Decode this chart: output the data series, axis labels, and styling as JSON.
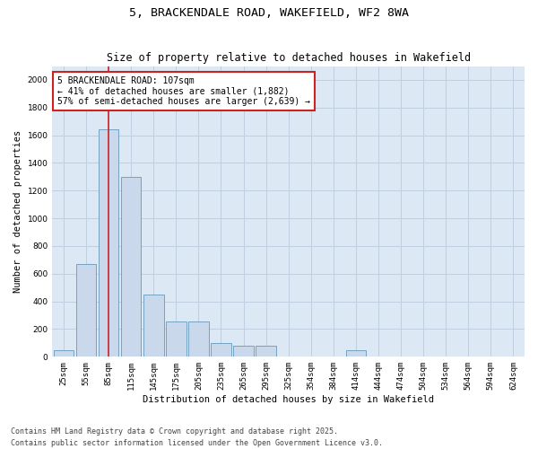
{
  "title": "5, BRACKENDALE ROAD, WAKEFIELD, WF2 8WA",
  "subtitle": "Size of property relative to detached houses in Wakefield",
  "xlabel": "Distribution of detached houses by size in Wakefield",
  "ylabel": "Number of detached properties",
  "categories": [
    "25sqm",
    "55sqm",
    "85sqm",
    "115sqm",
    "145sqm",
    "175sqm",
    "205sqm",
    "235sqm",
    "265sqm",
    "295sqm",
    "325sqm",
    "354sqm",
    "384sqm",
    "414sqm",
    "444sqm",
    "474sqm",
    "504sqm",
    "534sqm",
    "564sqm",
    "594sqm",
    "624sqm"
  ],
  "values": [
    50,
    670,
    1640,
    1300,
    450,
    255,
    255,
    100,
    80,
    80,
    0,
    0,
    0,
    50,
    0,
    0,
    0,
    0,
    0,
    0,
    0
  ],
  "bar_color": "#c9d9eb",
  "bar_edge_color": "#6699bb",
  "vline_color": "#cc2222",
  "vline_pos": 2.0,
  "annotation_text": "5 BRACKENDALE ROAD: 107sqm\n← 41% of detached houses are smaller (1,882)\n57% of semi-detached houses are larger (2,639) →",
  "annotation_box_color": "#ffffff",
  "annotation_box_edge": "#cc2222",
  "ylim": [
    0,
    2100
  ],
  "yticks": [
    0,
    200,
    400,
    600,
    800,
    1000,
    1200,
    1400,
    1600,
    1800,
    2000
  ],
  "grid_color": "#c0cfe0",
  "plot_bg_color": "#dce8f4",
  "footer_text": "Contains HM Land Registry data © Crown copyright and database right 2025.\nContains public sector information licensed under the Open Government Licence v3.0.",
  "title_fontsize": 9.5,
  "subtitle_fontsize": 8.5,
  "axis_label_fontsize": 7.5,
  "tick_fontsize": 6.5,
  "annotation_fontsize": 7,
  "footer_fontsize": 6
}
